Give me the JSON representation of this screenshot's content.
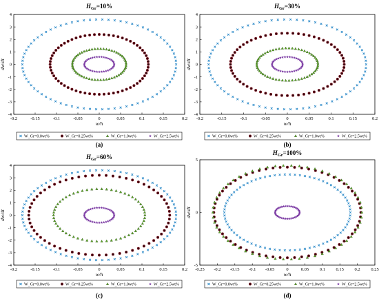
{
  "chart_data": [
    {
      "type": "scatter",
      "panel_label": "(a)",
      "title": {
        "main": "H",
        "sub": "Gr",
        "rest": "=10%"
      },
      "xlabel": "w/h",
      "ylabel": "dw/dt",
      "xlim": [
        -0.2,
        0.2
      ],
      "ylim": [
        -4,
        4
      ],
      "xticks": [
        "-0.2",
        "-0.15",
        "-0.1",
        "-0.05",
        "0",
        "0.05",
        "0.1",
        "0.15",
        "0.2"
      ],
      "yticks": [
        "-4",
        "-3",
        "-2",
        "-1",
        "0",
        "1",
        "2",
        "3",
        "4"
      ],
      "grid": false,
      "legend_placement": "bottom",
      "series": [
        {
          "name": "W_Gr=0.0wt%",
          "marker": "x",
          "color": "#2e8bc9",
          "ellipse": {
            "cx": 0,
            "cy": 0,
            "rx": 0.18,
            "ry": 3.6
          }
        },
        {
          "name": "W_Gr=0.25wt%",
          "marker": "circle",
          "color": "#7a1420",
          "ellipse": {
            "cx": 0,
            "cy": 0,
            "rx": 0.115,
            "ry": 2.4
          }
        },
        {
          "name": "W_Gr=1.0wt%",
          "marker": "triangle",
          "color": "#5fa82a",
          "ellipse": {
            "cx": 0,
            "cy": 0,
            "rx": 0.063,
            "ry": 1.25
          }
        },
        {
          "name": "W_Gr=2.5wt%",
          "marker": "star",
          "color": "#7b3aa3",
          "ellipse": {
            "cx": 0,
            "cy": 0,
            "rx": 0.035,
            "ry": 0.6
          }
        }
      ]
    },
    {
      "type": "scatter",
      "panel_label": "(b)",
      "title": {
        "main": "H",
        "sub": "Gr",
        "rest": "=30%"
      },
      "xlabel": "w/h",
      "ylabel": "dw/dt",
      "xlim": [
        -0.2,
        0.2
      ],
      "ylim": [
        -4,
        4
      ],
      "xticks": [
        "-0.2",
        "-0.15",
        "-0.1",
        "-0.05",
        "0",
        "0.05",
        "0.1",
        "0.15",
        "0.2"
      ],
      "yticks": [
        "-4",
        "-3",
        "-2",
        "-1",
        "0",
        "1",
        "2",
        "3",
        "4"
      ],
      "grid": false,
      "legend_placement": "bottom",
      "series": [
        {
          "name": "W_Gr=0.0wt%",
          "marker": "x",
          "color": "#2e8bc9",
          "ellipse": {
            "cx": 0,
            "cy": 0,
            "rx": 0.18,
            "ry": 3.6
          }
        },
        {
          "name": "W_Gr=0.25wt%",
          "marker": "circle",
          "color": "#7a1420",
          "ellipse": {
            "cx": 0,
            "cy": 0,
            "rx": 0.13,
            "ry": 2.5
          }
        },
        {
          "name": "W_Gr=1.0wt%",
          "marker": "triangle",
          "color": "#5fa82a",
          "ellipse": {
            "cx": 0,
            "cy": 0,
            "rx": 0.07,
            "ry": 1.3
          }
        },
        {
          "name": "W_Gr=2.5wt%",
          "marker": "star",
          "color": "#7b3aa3",
          "ellipse": {
            "cx": 0,
            "cy": 0,
            "rx": 0.035,
            "ry": 0.6
          }
        }
      ]
    },
    {
      "type": "scatter",
      "panel_label": "(c)",
      "title": {
        "main": "H",
        "sub": "Gr",
        "rest": "=60%"
      },
      "xlabel": "w/h",
      "ylabel": "dw/dt",
      "xlim": [
        -0.2,
        0.2
      ],
      "ylim": [
        -4,
        4
      ],
      "xticks": [
        "-0.2",
        "-0.15",
        "-0.1",
        "-0.05",
        "0",
        "0.05",
        "0.1",
        "0.15",
        "0.2"
      ],
      "yticks": [
        "-4",
        "-3",
        "-2",
        "-1",
        "0",
        "1",
        "2",
        "3",
        "4"
      ],
      "grid": false,
      "legend_placement": "bottom",
      "series": [
        {
          "name": "W_Gr=0.0wt%",
          "marker": "x",
          "color": "#2e8bc9",
          "ellipse": {
            "cx": 0,
            "cy": 0,
            "rx": 0.18,
            "ry": 3.6
          }
        },
        {
          "name": "W_Gr=0.25wt%",
          "marker": "circle",
          "color": "#7a1420",
          "ellipse": {
            "cx": 0,
            "cy": 0,
            "rx": 0.165,
            "ry": 3.2
          }
        },
        {
          "name": "W_Gr=1.0wt%",
          "marker": "triangle",
          "color": "#5fa82a",
          "ellipse": {
            "cx": 0,
            "cy": 0,
            "rx": 0.107,
            "ry": 2.1
          }
        },
        {
          "name": "W_Gr=2.5wt%",
          "marker": "star",
          "color": "#7b3aa3",
          "ellipse": {
            "cx": 0,
            "cy": 0,
            "rx": 0.035,
            "ry": 0.6
          }
        }
      ]
    },
    {
      "type": "scatter",
      "panel_label": "(d)",
      "title": {
        "main": "H",
        "sub": "Gr",
        "rest": "=100%"
      },
      "xlabel": "w/h",
      "ylabel": "dw/dt",
      "xlim": [
        -0.25,
        0.25
      ],
      "ylim": [
        -5,
        5
      ],
      "xticks": [
        "-0.25",
        "-0.2",
        "-0.15",
        "-0.1",
        "-0.05",
        "0",
        "0.05",
        "0.1",
        "0.15",
        "0.2",
        "0.25"
      ],
      "yticks": [
        "-5",
        "0",
        "5"
      ],
      "grid": false,
      "legend_placement": "bottom",
      "series": [
        {
          "name": "W_Gr=0.0wt%",
          "marker": "x",
          "color": "#2e8bc9",
          "ellipse": {
            "cx": 0,
            "cy": 0,
            "rx": 0.18,
            "ry": 3.6
          }
        },
        {
          "name": "W_Gr=0.25wt%",
          "marker": "circle",
          "color": "#7a1420",
          "ellipse": {
            "cx": 0,
            "cy": 0,
            "rx": 0.21,
            "ry": 4.3
          }
        },
        {
          "name": "W_Gr=1.0wt%",
          "marker": "triangle",
          "color": "#5fa82a",
          "ellipse": {
            "cx": 0,
            "cy": 0,
            "rx": 0.213,
            "ry": 4.45
          }
        },
        {
          "name": "W_Gr=2.5wt%",
          "marker": "star",
          "color": "#7b3aa3",
          "ellipse": {
            "cx": 0,
            "cy": 0,
            "rx": 0.035,
            "ry": 0.6
          }
        }
      ]
    }
  ]
}
